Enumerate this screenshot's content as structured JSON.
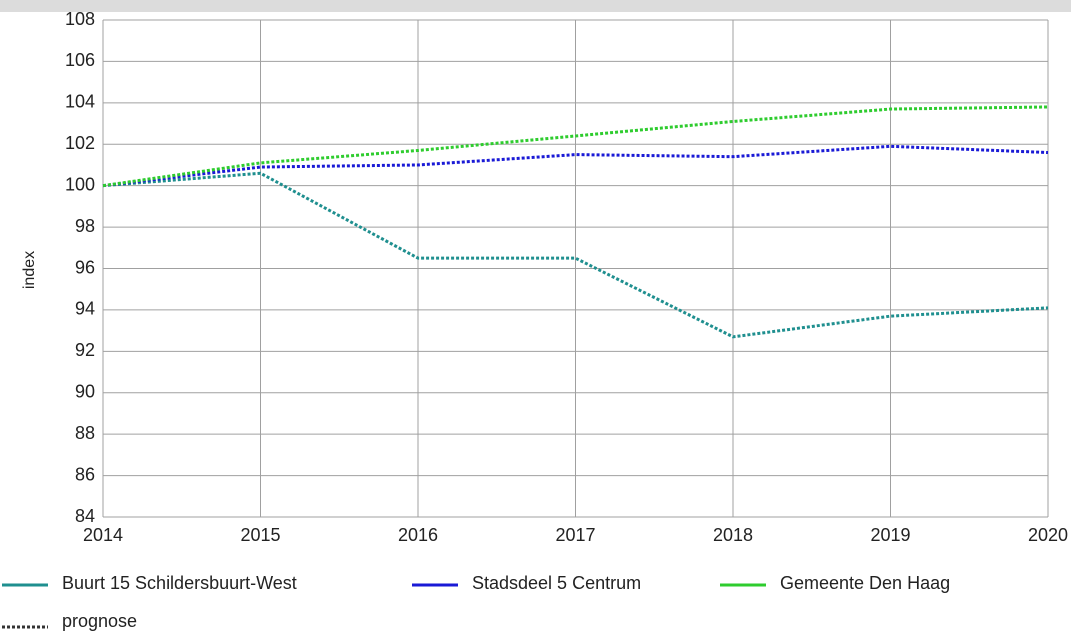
{
  "chart_data": {
    "type": "line",
    "y_label": "index",
    "x": [
      2014,
      2015,
      2016,
      2017,
      2018,
      2019,
      2020
    ],
    "xlim": [
      2014,
      2020
    ],
    "xticks": [
      2014,
      2015,
      2016,
      2017,
      2018,
      2019,
      2020
    ],
    "ylim": [
      84,
      108
    ],
    "yticks": [
      84,
      86,
      88,
      90,
      92,
      94,
      96,
      98,
      100,
      102,
      104,
      106,
      108
    ],
    "grid": true,
    "line_style": "dotted",
    "line_style_legend": "prognose",
    "series": [
      {
        "name": "Buurt 15 Schildersbuurt-West",
        "color": "#1f8f8f",
        "values": [
          100,
          100.6,
          96.5,
          96.5,
          92.7,
          93.7,
          94.1
        ]
      },
      {
        "name": "Stadsdeel 5 Centrum",
        "color": "#1a1ad6",
        "values": [
          100,
          100.9,
          101.0,
          101.5,
          101.4,
          101.9,
          101.6
        ]
      },
      {
        "name": "Gemeente Den Haag",
        "color": "#2ecc2e",
        "values": [
          100,
          101.1,
          101.7,
          102.4,
          103.1,
          103.7,
          103.8
        ]
      }
    ]
  }
}
